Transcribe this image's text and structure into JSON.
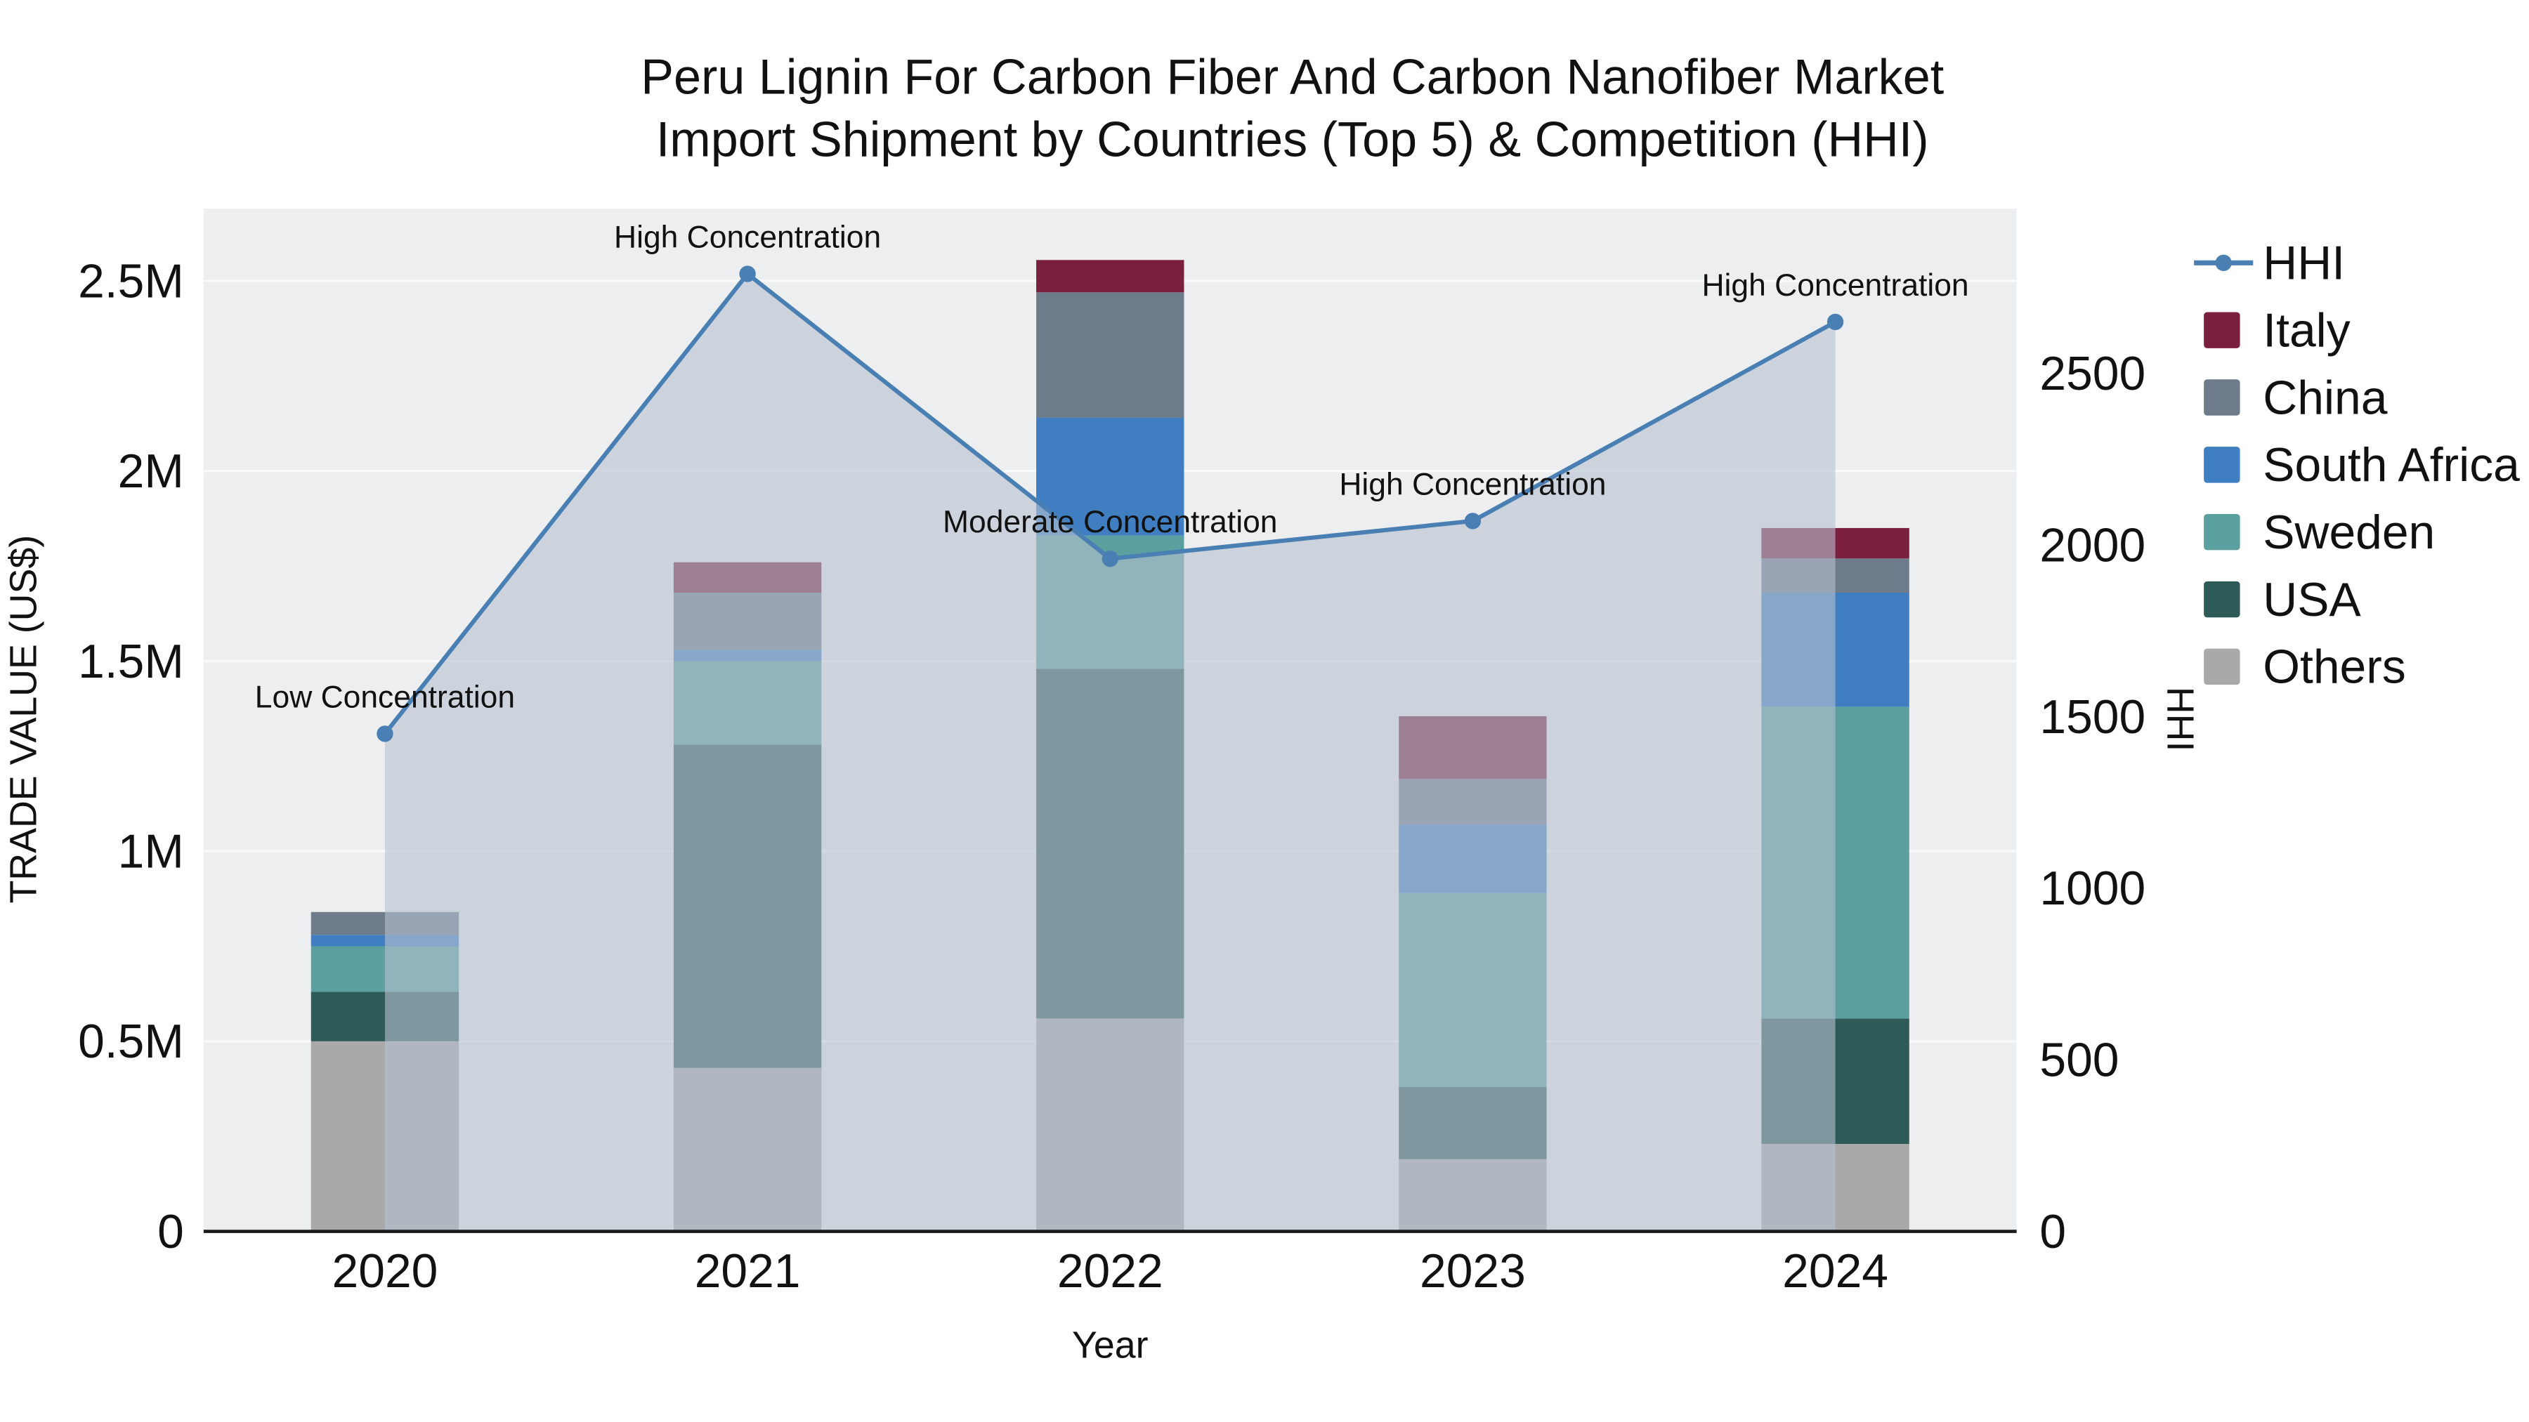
{
  "title": {
    "line1": "Peru Lignin For Carbon Fiber And Carbon Nanofiber Market",
    "line2": "Import Shipment by Countries (Top 5) & Competition (HHI)"
  },
  "chart_data": {
    "type": "bar",
    "subtype": "stacked-bar-with-line-overlay",
    "categories": [
      "2020",
      "2021",
      "2022",
      "2023",
      "2024"
    ],
    "xlabel": "Year",
    "ylabel_left": "TRADE VALUE (US$)",
    "ylabel_right": "HHI",
    "ylim_left": [
      0,
      2690000
    ],
    "ylim_right": [
      0,
      2980
    ],
    "yticks_left": [
      {
        "value": 0,
        "label": "0"
      },
      {
        "value": 500000,
        "label": "0.5M"
      },
      {
        "value": 1000000,
        "label": "1M"
      },
      {
        "value": 1500000,
        "label": "1.5M"
      },
      {
        "value": 2000000,
        "label": "2M"
      },
      {
        "value": 2500000,
        "label": "2.5M"
      }
    ],
    "yticks_right": [
      {
        "value": 0,
        "label": "0"
      },
      {
        "value": 500,
        "label": "500"
      },
      {
        "value": 1000,
        "label": "1000"
      },
      {
        "value": 1500,
        "label": "1500"
      },
      {
        "value": 2000,
        "label": "2000"
      },
      {
        "value": 2500,
        "label": "2500"
      }
    ],
    "bar_series_bottom_to_top": [
      {
        "name": "Others",
        "color": "#a9a9a9",
        "values": [
          500000,
          430000,
          560000,
          190000,
          230000
        ]
      },
      {
        "name": "USA",
        "color": "#2e5a58",
        "values": [
          130000,
          850000,
          920000,
          190000,
          330000
        ]
      },
      {
        "name": "Sweden",
        "color": "#5b9f9f",
        "values": [
          120000,
          220000,
          350000,
          510000,
          820000
        ]
      },
      {
        "name": "South Africa",
        "color": "#3f7fc1",
        "values": [
          30000,
          30000,
          310000,
          180000,
          300000
        ]
      },
      {
        "name": "China",
        "color": "#6e7b8b",
        "values": [
          60000,
          150000,
          330000,
          120000,
          90000
        ]
      },
      {
        "name": "Italy",
        "color": "#7a1f3d",
        "values": [
          0,
          80000,
          85000,
          165000,
          80000
        ]
      }
    ],
    "line_series": {
      "name": "HHI",
      "color": "#4a7fb3",
      "area_fill": "#b6c1d0",
      "values": [
        1450,
        2790,
        1960,
        2070,
        2650
      ]
    },
    "annotations": [
      {
        "category": "2020",
        "text": "Low Concentration"
      },
      {
        "category": "2021",
        "text": "High Concentration"
      },
      {
        "category": "2022",
        "text": "Moderate Concentration"
      },
      {
        "category": "2023",
        "text": "High Concentration"
      },
      {
        "category": "2024",
        "text": "High Concentration"
      }
    ],
    "legend": [
      {
        "label": "HHI",
        "type": "line",
        "color": "#4a7fb3"
      },
      {
        "label": "Italy",
        "type": "swatch",
        "color": "#7a1f3d"
      },
      {
        "label": "China",
        "type": "swatch",
        "color": "#6e7b8b"
      },
      {
        "label": "South Africa",
        "type": "swatch",
        "color": "#3f7fc1"
      },
      {
        "label": "Sweden",
        "type": "swatch",
        "color": "#5b9f9f"
      },
      {
        "label": "USA",
        "type": "swatch",
        "color": "#2e5a58"
      },
      {
        "label": "Others",
        "type": "swatch",
        "color": "#a9a9a9"
      }
    ],
    "plot_background": "#edeef0",
    "grid_color": "#f8f9fa"
  }
}
